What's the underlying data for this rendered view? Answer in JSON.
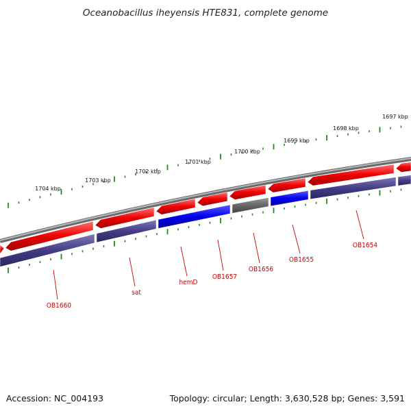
{
  "title": "Oceanobacillus iheyensis HTE831, complete genome",
  "footer": {
    "accession": "Accession: NC_004193",
    "summary": "Topology: circular; Length: 3,630,528 bp; Genes: 3,591"
  },
  "scale_labels": [
    "1697 kbp",
    "1698 kbp",
    "1699 kbp",
    "1700 kbp",
    "1701 kbp",
    "1702 kbp",
    "1703 kbp",
    "1704 kbp"
  ],
  "gene_labels": [
    "OB1654",
    "OB1655",
    "OB1656",
    "OB1657",
    "hemD",
    "sat",
    "OB1660"
  ],
  "colors": {
    "forward_cds": "#ee0000",
    "reverse_cds_dark": "#443c86",
    "reverse_cds_blue": "#0000ee",
    "reverse_cds_gray": "#666666",
    "backbone": "#888888",
    "ticks": "#228822",
    "label_red": "#cc0000"
  }
}
